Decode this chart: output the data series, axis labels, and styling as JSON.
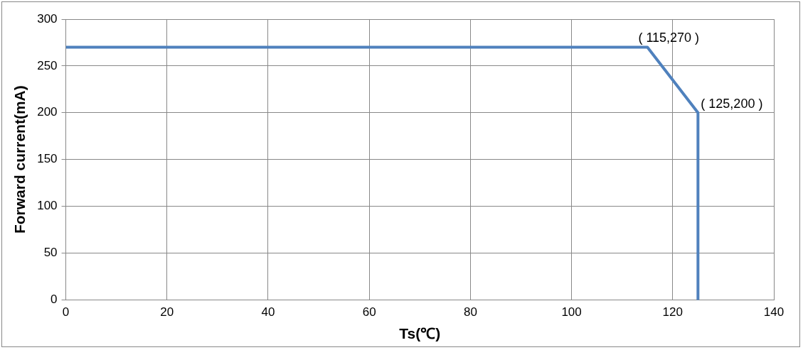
{
  "chart_data": {
    "type": "line",
    "xlabel": "Ts(℃)",
    "ylabel": "Forward current(mA)",
    "x": [
      0,
      115,
      125,
      125
    ],
    "series": [
      {
        "color": "#4f81bd",
        "values": [
          270,
          270,
          200,
          0
        ]
      }
    ],
    "xlim": [
      0,
      140
    ],
    "xticks": [
      0,
      20,
      40,
      60,
      80,
      100,
      120,
      140
    ],
    "ylim": [
      0,
      300
    ],
    "yticks": [
      0,
      50,
      100,
      150,
      200,
      250,
      300
    ],
    "grid": true,
    "legend": false,
    "marker": "none",
    "line_style": "solid",
    "annotations": [
      {
        "text": "( 115,270 )",
        "x": 115,
        "y": 270
      },
      {
        "text": "( 125,200 )",
        "x": 125,
        "y": 200
      }
    ]
  }
}
